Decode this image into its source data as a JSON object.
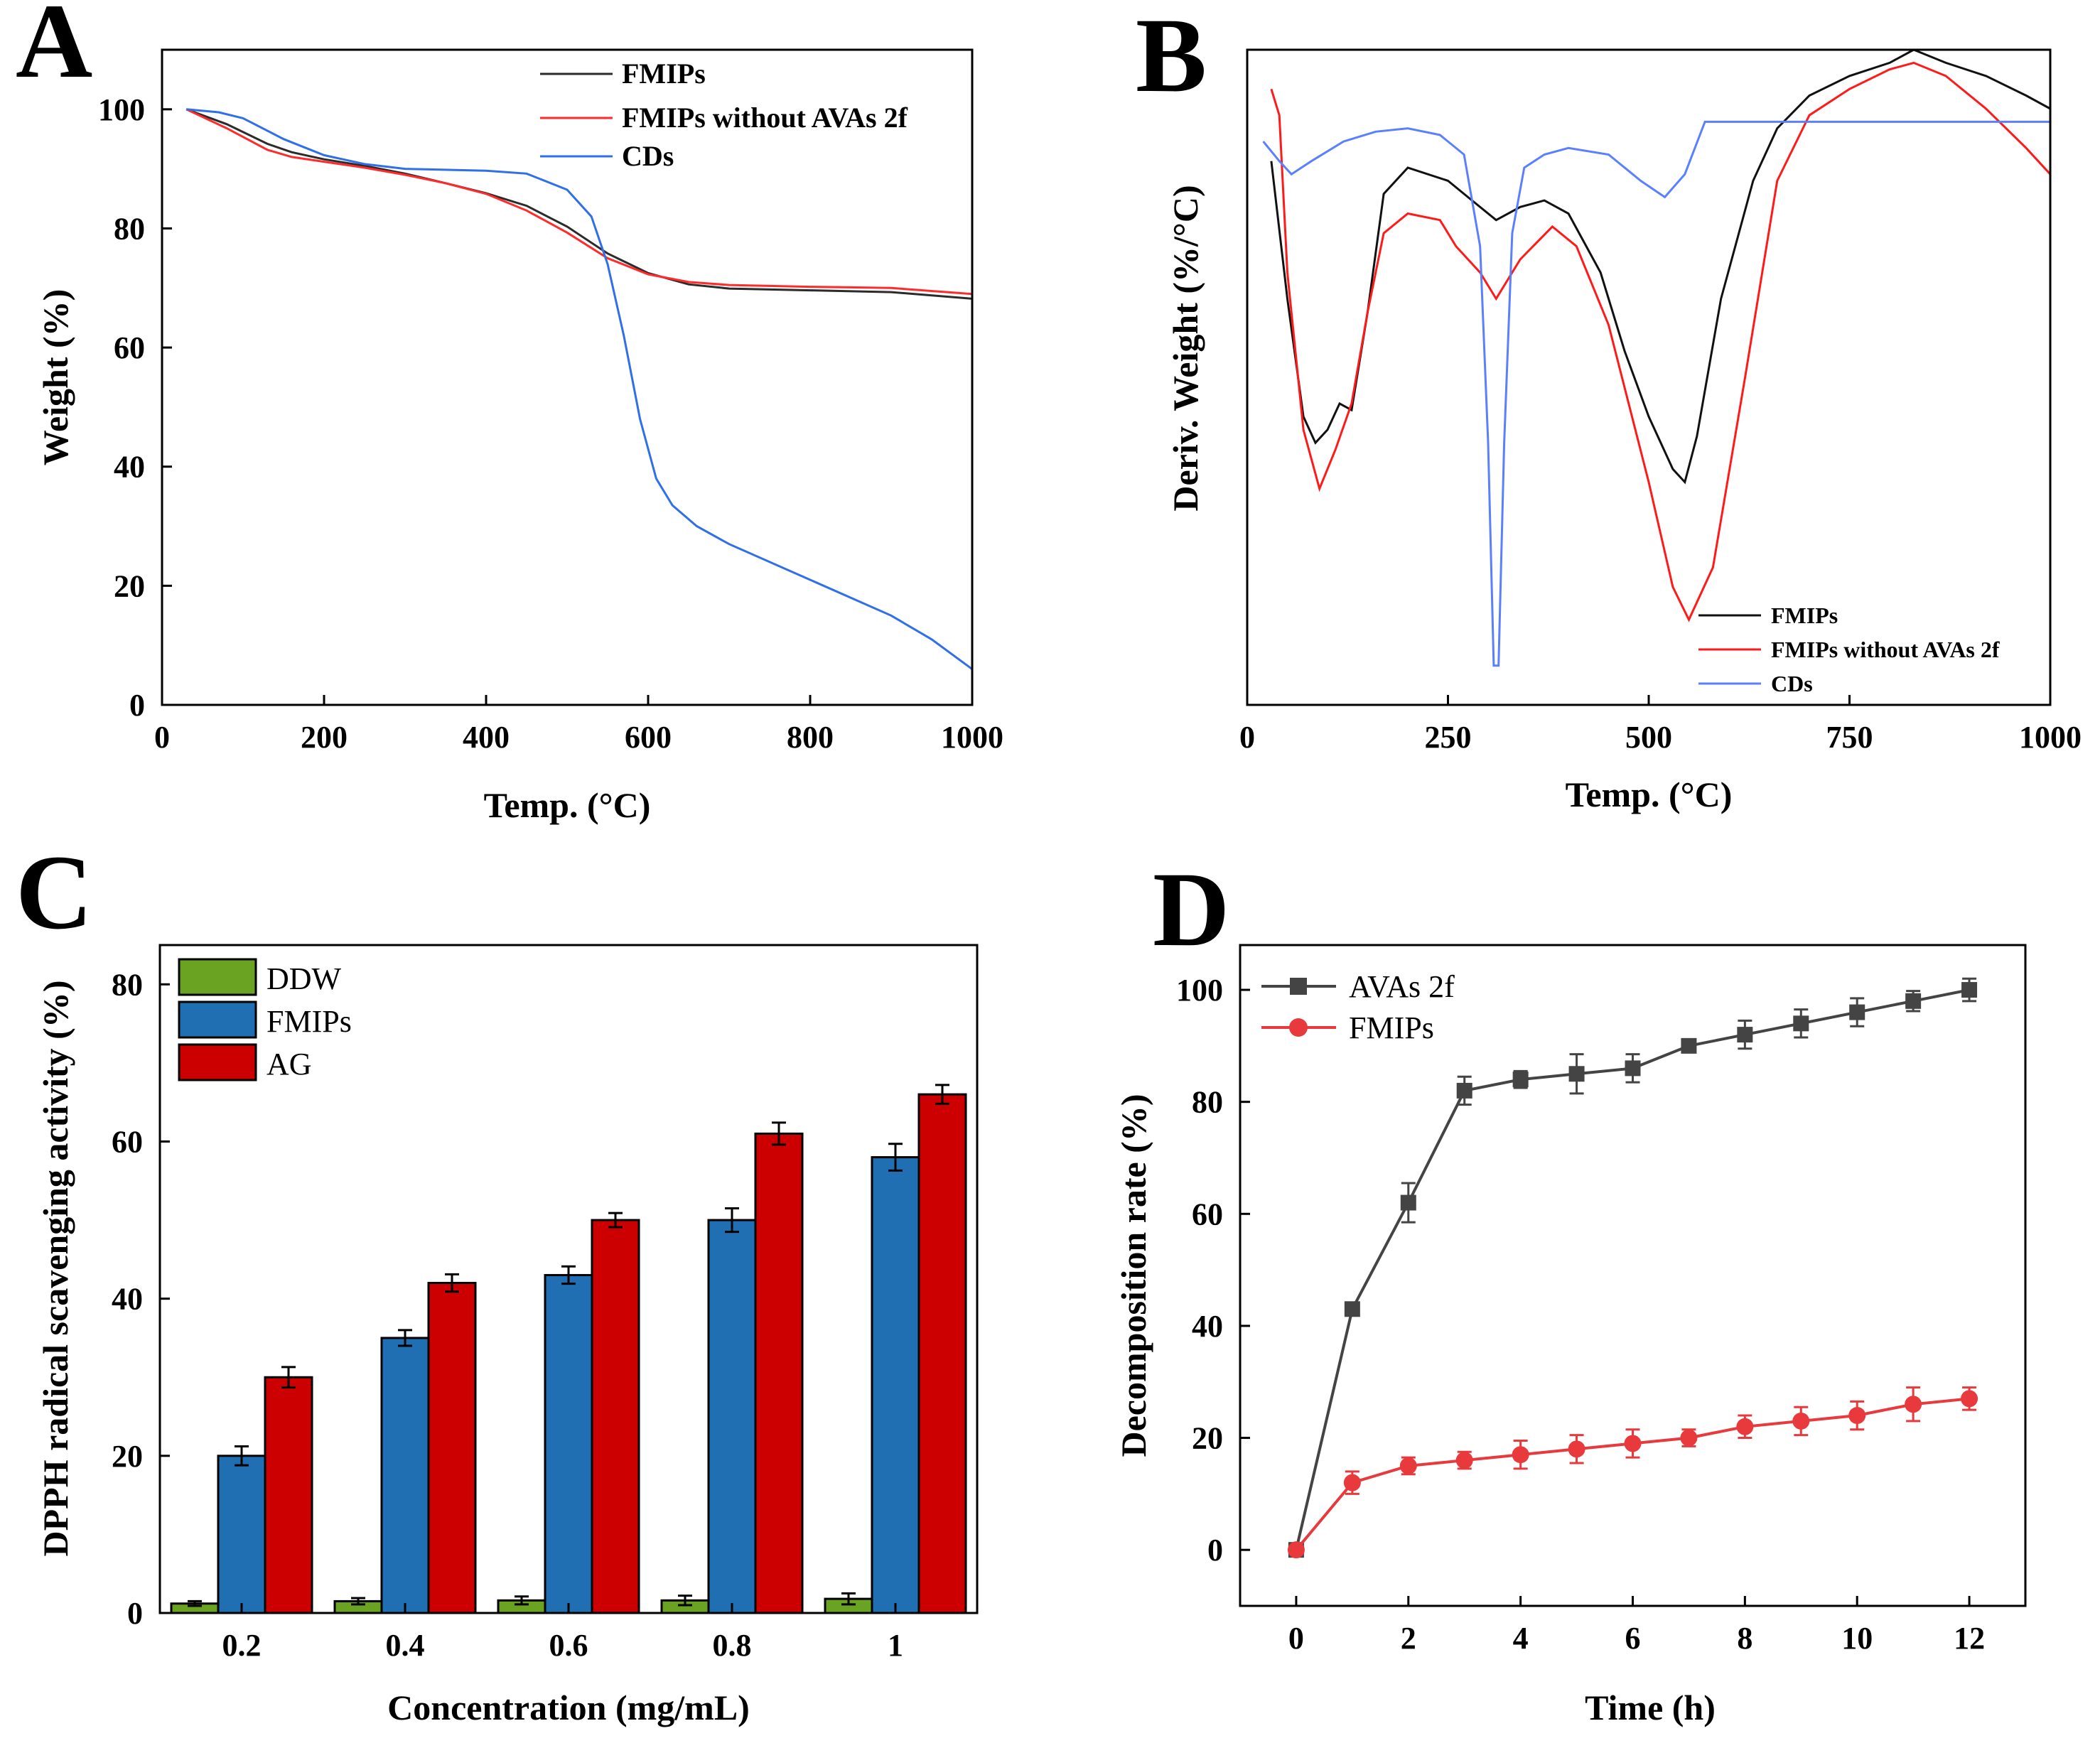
{
  "chart_data": [
    {
      "panel": "A",
      "type": "line",
      "xlabel": "Temp. (°C)",
      "ylabel": "Weight (%)",
      "xlim": [
        0,
        1000
      ],
      "ylim": [
        0,
        110
      ],
      "xticks": [
        0,
        200,
        400,
        600,
        800,
        1000
      ],
      "yticks": [
        0,
        20,
        40,
        60,
        80,
        100
      ],
      "legend_position": "top-right",
      "series": [
        {
          "name": "FMIPs",
          "color": "#2b2b2b",
          "x": [
            30,
            80,
            130,
            160,
            200,
            250,
            300,
            350,
            400,
            450,
            500,
            550,
            600,
            650,
            700,
            800,
            900,
            1000
          ],
          "y": [
            100,
            97.5,
            94.2,
            92.8,
            91.6,
            90.5,
            89.2,
            87.6,
            85.9,
            83.8,
            80.3,
            75.8,
            72.5,
            70.6,
            69.9,
            69.6,
            69.3,
            68.2
          ]
        },
        {
          "name": "FMIPs without AVAs 2f",
          "color": "#ff2b2b",
          "x": [
            30,
            80,
            130,
            160,
            200,
            250,
            300,
            350,
            400,
            450,
            500,
            550,
            600,
            650,
            700,
            800,
            900,
            1000
          ],
          "y": [
            100,
            96.8,
            93.2,
            92.0,
            91.2,
            90.2,
            89.0,
            87.6,
            85.8,
            83.0,
            79.3,
            75.0,
            72.3,
            71.0,
            70.5,
            70.2,
            70.0,
            69.0
          ]
        },
        {
          "name": "CDs",
          "color": "#2f6fe8",
          "x": [
            30,
            70,
            100,
            150,
            200,
            250,
            300,
            400,
            450,
            500,
            530,
            550,
            570,
            590,
            610,
            630,
            660,
            700,
            800,
            900,
            950,
            1000
          ],
          "y": [
            100,
            99.5,
            98.5,
            95.0,
            92.3,
            90.8,
            90.0,
            89.7,
            89.2,
            86.5,
            82.0,
            74.0,
            62.0,
            48.0,
            38.0,
            33.5,
            30.0,
            27.0,
            21.0,
            15.0,
            11.0,
            6.0
          ]
        }
      ]
    },
    {
      "panel": "B",
      "type": "line",
      "xlabel": "Temp. (°C)",
      "ylabel": "Deriv. Weight (%/°C)",
      "xlim": [
        0,
        1000
      ],
      "ylim": [
        0,
        100
      ],
      "xticks": [
        0,
        250,
        500,
        750,
        1000
      ],
      "y_ticks_shown": false,
      "legend_position": "bottom-right",
      "series": [
        {
          "name": "FMIPs",
          "color": "#111111",
          "x": [
            30,
            50,
            70,
            85,
            100,
            115,
            130,
            150,
            170,
            200,
            250,
            280,
            310,
            340,
            370,
            400,
            440,
            470,
            500,
            530,
            545,
            560,
            590,
            630,
            660,
            700,
            750,
            800,
            830,
            870,
            920,
            970,
            1000
          ],
          "y": [
            83,
            62,
            44,
            40,
            42,
            46,
            45,
            60,
            78,
            82,
            80,
            77,
            74,
            76,
            77,
            75,
            66,
            54,
            44,
            36,
            34,
            41,
            62,
            80,
            88,
            93,
            96,
            98,
            100,
            98,
            96,
            93,
            91
          ]
        },
        {
          "name": "FMIPs without AVAs 2f",
          "color": "#ff1a1a",
          "x": [
            30,
            40,
            50,
            70,
            90,
            110,
            130,
            150,
            170,
            200,
            240,
            260,
            290,
            310,
            340,
            380,
            410,
            450,
            500,
            530,
            550,
            580,
            620,
            660,
            700,
            750,
            800,
            830,
            870,
            920,
            970,
            1000
          ],
          "y": [
            94,
            90,
            66,
            42,
            33,
            39,
            46,
            60,
            72,
            75,
            74,
            70,
            66,
            62,
            68,
            73,
            70,
            58,
            34,
            18,
            13,
            21,
            50,
            80,
            90,
            94,
            97,
            98,
            96,
            91,
            85,
            81
          ]
        },
        {
          "name": "CDs",
          "color": "#5a7fff",
          "x": [
            20,
            40,
            55,
            80,
            120,
            160,
            200,
            240,
            270,
            290,
            300,
            307,
            313,
            320,
            330,
            345,
            370,
            400,
            450,
            490,
            520,
            545,
            570,
            600,
            700,
            800,
            900,
            1000
          ],
          "y": [
            86,
            83,
            81,
            83,
            86,
            87.5,
            88,
            87,
            84,
            70,
            40,
            6,
            6,
            40,
            72,
            82,
            84,
            85,
            84,
            80,
            77.5,
            81,
            89,
            89,
            89,
            89,
            89,
            89
          ]
        }
      ]
    },
    {
      "panel": "C",
      "type": "bar",
      "xlabel": "Concentration (mg/mL)",
      "ylabel": "DPPH radical scavenging activity (%)",
      "ylim": [
        0,
        85
      ],
      "yticks": [
        0,
        20,
        40,
        60,
        80
      ],
      "legend_position": "top-left",
      "categories": [
        "0.2",
        "0.4",
        "0.6",
        "0.8",
        "1"
      ],
      "series": [
        {
          "name": "DDW",
          "color": "#6aa321",
          "values": [
            1.2,
            1.5,
            1.6,
            1.6,
            1.8
          ],
          "errors": [
            0.3,
            0.4,
            0.5,
            0.6,
            0.7
          ]
        },
        {
          "name": "FMIPs",
          "color": "#1f6fb2",
          "values": [
            20,
            35,
            43,
            50,
            58
          ],
          "errors": [
            1.2,
            1.0,
            1.1,
            1.5,
            1.7
          ]
        },
        {
          "name": "AG",
          "color": "#cc0000",
          "values": [
            30,
            42,
            50,
            61,
            66
          ],
          "errors": [
            1.3,
            1.1,
            0.9,
            1.4,
            1.2
          ]
        }
      ]
    },
    {
      "panel": "D",
      "type": "line",
      "xlabel": "Time (h)",
      "ylabel": "Decomposition rate (%)",
      "xlim": [
        -1,
        13
      ],
      "ylim": [
        -10,
        108
      ],
      "xticks": [
        0,
        2,
        4,
        6,
        8,
        10,
        12
      ],
      "yticks": [
        0,
        20,
        40,
        60,
        80,
        100
      ],
      "legend_position": "top-left",
      "x": [
        0,
        1,
        2,
        3,
        4,
        5,
        6,
        7,
        8,
        9,
        10,
        11,
        12
      ],
      "series": [
        {
          "name": "AVAs 2f",
          "color": "#444444",
          "marker": "square",
          "values": [
            0,
            43,
            62,
            82,
            84,
            85,
            86,
            90,
            92,
            94,
            96,
            98,
            100
          ],
          "errors": [
            0,
            1,
            3.5,
            2.5,
            1.5,
            3.5,
            2.5,
            1,
            2.5,
            2.5,
            2.5,
            1.8,
            2
          ]
        },
        {
          "name": "FMIPs",
          "color": "#e8393d",
          "marker": "circle",
          "values": [
            0,
            12,
            15,
            16,
            17,
            18,
            19,
            20,
            22,
            23,
            24,
            26,
            27
          ],
          "errors": [
            0,
            2,
            1.5,
            1.5,
            2.5,
            2.5,
            2.5,
            1.5,
            2,
            2.5,
            2.5,
            3,
            2
          ]
        }
      ]
    }
  ]
}
